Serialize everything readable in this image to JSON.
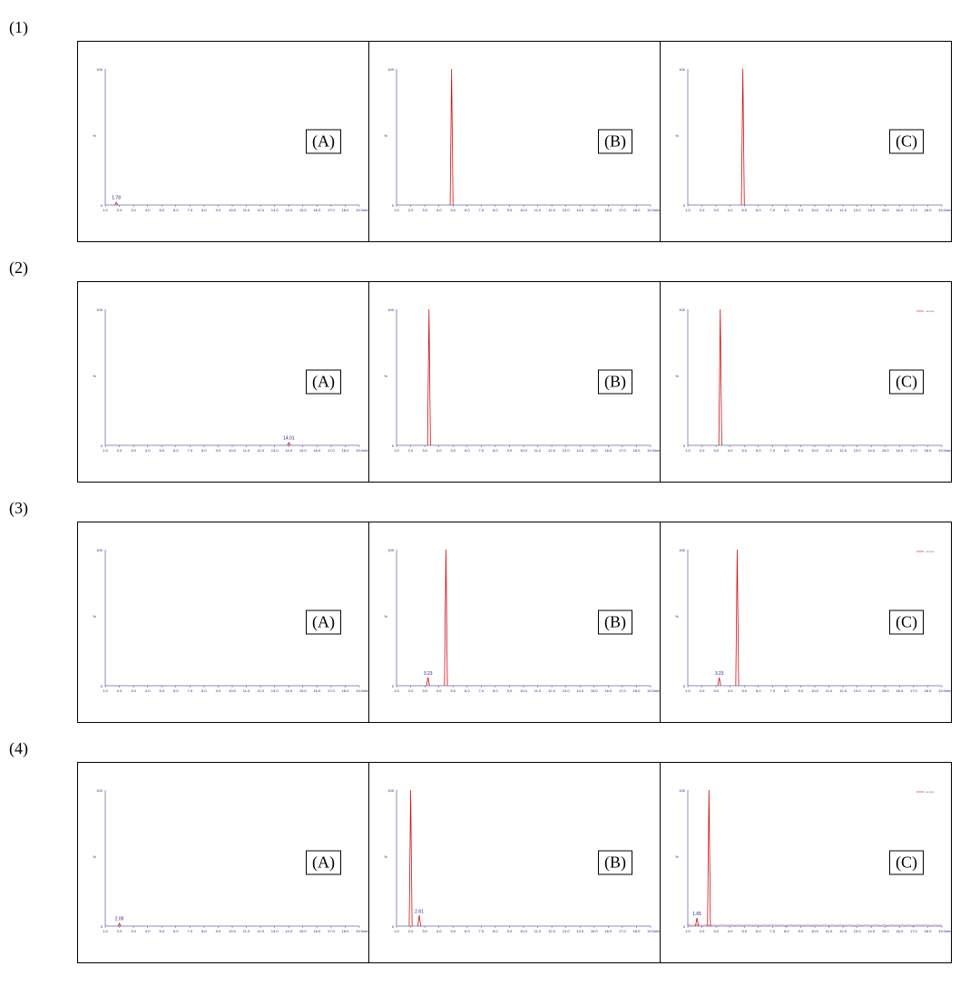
{
  "figure": {
    "colors": {
      "background": "#ffffff",
      "panel_border": "#000000",
      "axis": "#1a1a80",
      "peak": "#d01010",
      "text": "#000000",
      "axis_text": "#1a1a80"
    },
    "x_axis": {
      "min": 1.0,
      "max": 19.0,
      "tick_step": 1.0,
      "tick_labels": [
        "1.0",
        "2.0",
        "3.0",
        "4.0",
        "5.0",
        "6.0",
        "7.0",
        "8.0",
        "9.0",
        "10.0",
        "11.0",
        "12.0",
        "13.0",
        "14.0",
        "15.0",
        "16.0",
        "17.0",
        "18.0",
        "19.0"
      ],
      "unit_label": "min"
    },
    "y_axis": {
      "min": 0,
      "max": 100,
      "label": "%",
      "top_tick": "100",
      "bottom_tick": "0"
    },
    "panel_labels": [
      "(A)",
      "(B)",
      "(C)"
    ],
    "row_labels": [
      "(1)",
      "(2)",
      "(3)",
      "(4)"
    ],
    "fontsize": {
      "row_label": 18,
      "panel_label": 18,
      "axis_tick": 4,
      "peak_label": 5
    },
    "rows": [
      {
        "id": 1,
        "panels": [
          {
            "letter": "(A)",
            "peaks": [
              {
                "rt": 1.78,
                "height": 2,
                "label": "1.78"
              }
            ],
            "legend": false
          },
          {
            "letter": "(B)",
            "peaks": [
              {
                "rt": 4.9,
                "height": 100,
                "label": ""
              }
            ],
            "legend": false
          },
          {
            "letter": "(C)",
            "peaks": [
              {
                "rt": 4.9,
                "height": 100,
                "label": ""
              }
            ],
            "legend": false
          }
        ]
      },
      {
        "id": 2,
        "panels": [
          {
            "letter": "(A)",
            "peaks": [
              {
                "rt": 14.01,
                "height": 2,
                "label": "14.01"
              }
            ],
            "legend": false
          },
          {
            "letter": "(B)",
            "peaks": [
              {
                "rt": 3.3,
                "height": 100,
                "label": ""
              }
            ],
            "legend": false
          },
          {
            "letter": "(C)",
            "peaks": [
              {
                "rt": 3.3,
                "height": 100,
                "label": ""
              }
            ],
            "legend": true
          }
        ]
      },
      {
        "id": 3,
        "panels": [
          {
            "letter": "(A)",
            "peaks": [],
            "legend": false
          },
          {
            "letter": "(B)",
            "peaks": [
              {
                "rt": 3.23,
                "height": 6,
                "label": "3.23"
              },
              {
                "rt": 4.5,
                "height": 100,
                "label": ""
              }
            ],
            "legend": false
          },
          {
            "letter": "(C)",
            "peaks": [
              {
                "rt": 3.23,
                "height": 6,
                "label": "3.23"
              },
              {
                "rt": 4.5,
                "height": 100,
                "label": ""
              }
            ],
            "legend": true
          }
        ]
      },
      {
        "id": 4,
        "panels": [
          {
            "letter": "(A)",
            "peaks": [
              {
                "rt": 2.0,
                "height": 2,
                "label": "2.00"
              }
            ],
            "legend": false
          },
          {
            "letter": "(B)",
            "peaks": [
              {
                "rt": 2.0,
                "height": 100,
                "label": ""
              },
              {
                "rt": 2.61,
                "height": 8,
                "label": "2.61"
              }
            ],
            "legend": false
          },
          {
            "letter": "(C)",
            "peaks": [
              {
                "rt": 1.65,
                "height": 6,
                "label": "1.65"
              },
              {
                "rt": 2.5,
                "height": 100,
                "label": ""
              }
            ],
            "legend": true,
            "baseline_noise": true
          }
        ]
      }
    ]
  }
}
